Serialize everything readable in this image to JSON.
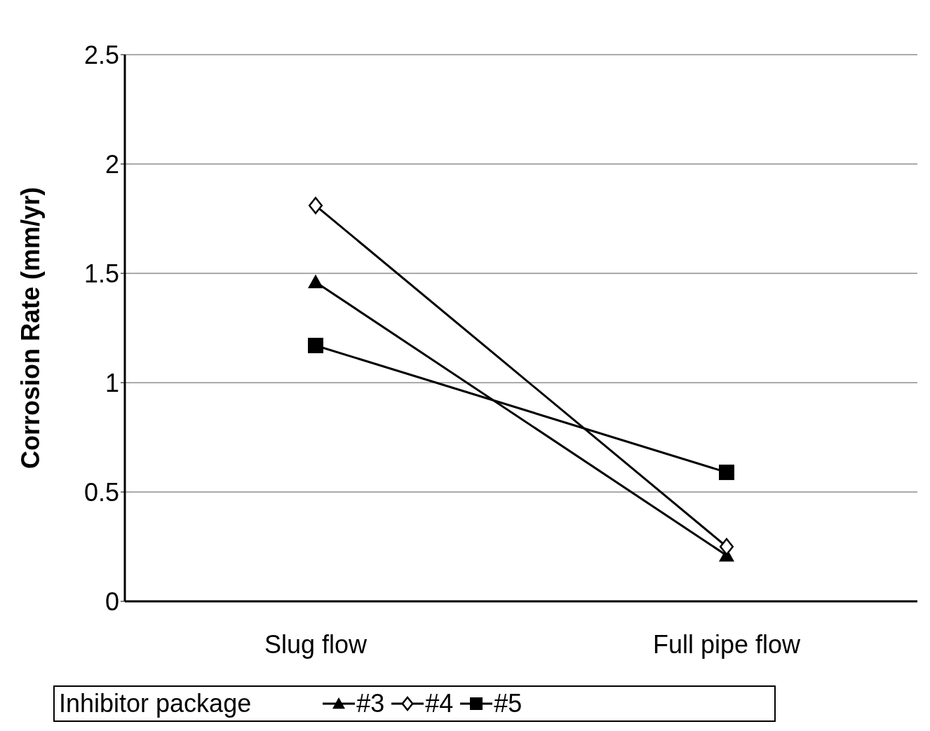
{
  "chart_data": {
    "type": "line",
    "categories": [
      "Slug flow",
      "Full pipe flow"
    ],
    "ylabel": "Corrosion Rate (mm/yr)",
    "ylim": [
      0,
      2.5
    ],
    "yticks": [
      0,
      0.5,
      1,
      1.5,
      2,
      2.5
    ],
    "grid": "y",
    "legend": "bottom",
    "legend_title": "Inhibitor package",
    "line_style": "solid",
    "series": [
      {
        "name": "#3",
        "color": "#000000",
        "marker": "triangle",
        "values": [
          1.46,
          0.21
        ]
      },
      {
        "name": "#4",
        "color": "#000000",
        "marker": "diamond",
        "values": [
          1.81,
          0.25
        ]
      },
      {
        "name": "#5",
        "color": "#000000",
        "marker": "square",
        "values": [
          1.17,
          0.59
        ]
      }
    ]
  }
}
